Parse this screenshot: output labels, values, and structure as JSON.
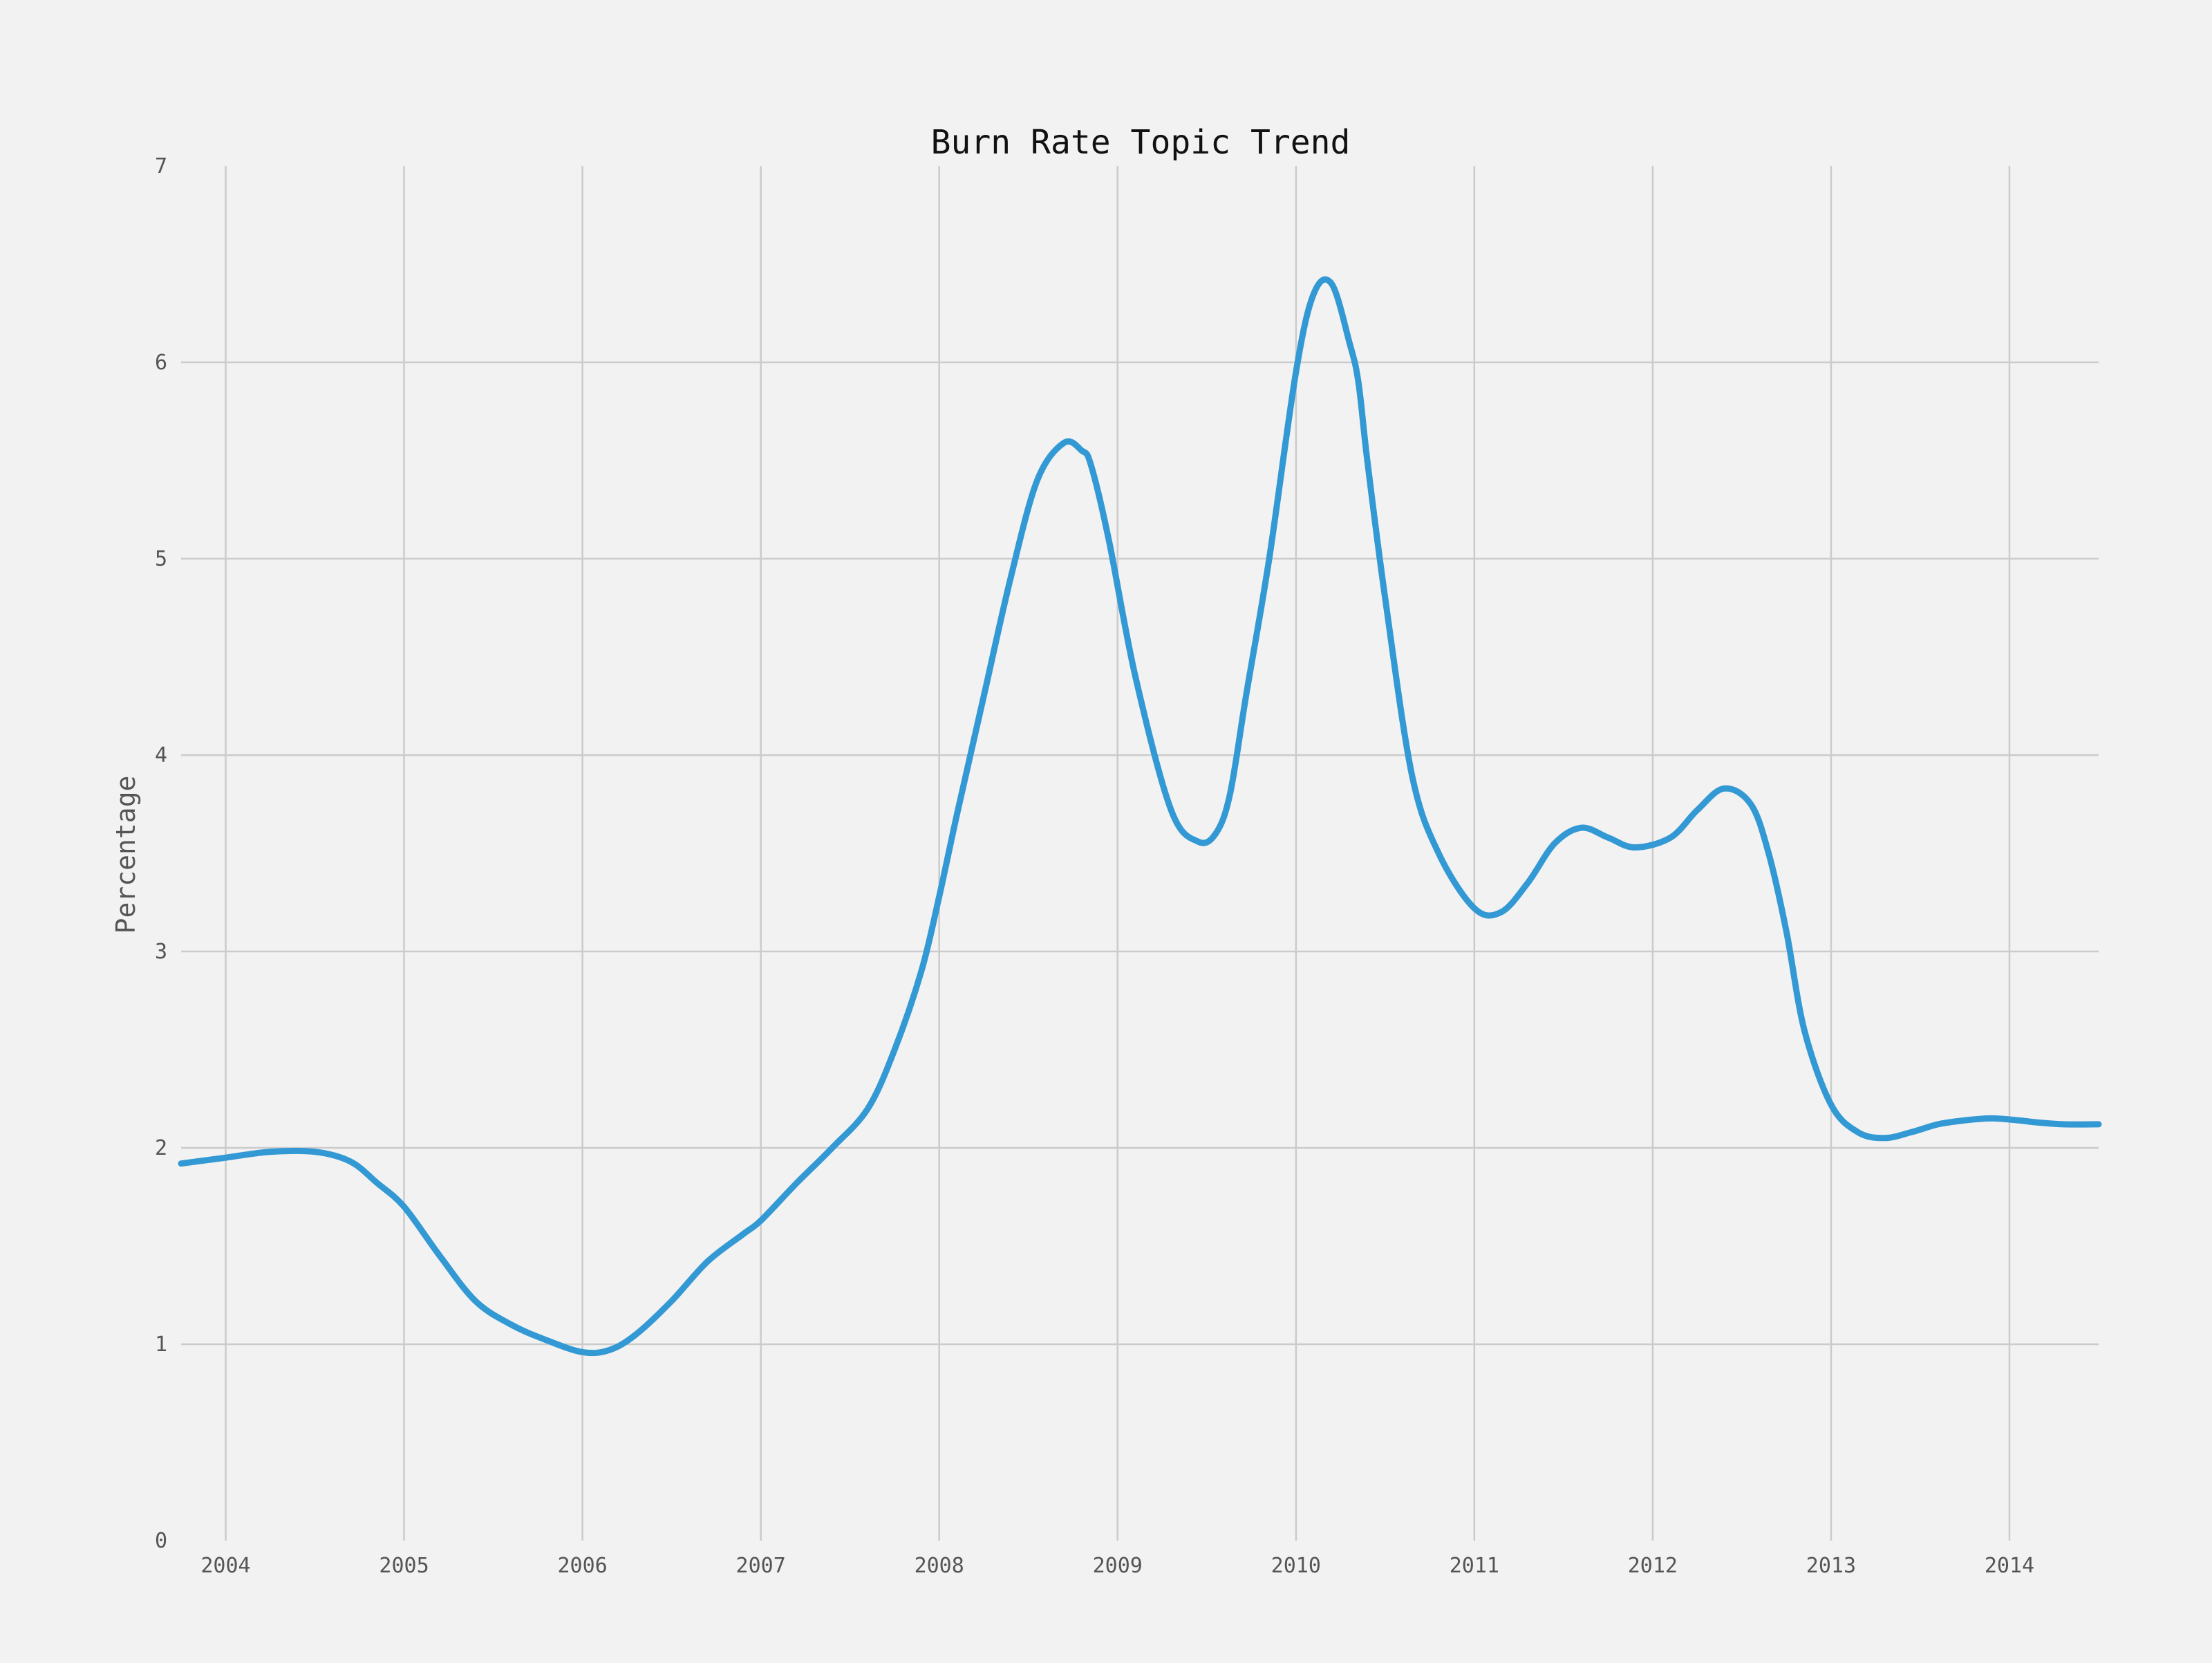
{
  "chart_data": {
    "type": "line",
    "title": "Burn Rate Topic Trend",
    "xlabel": "",
    "ylabel": "Percentage",
    "xlim": [
      2003.75,
      2014.5
    ],
    "ylim": [
      0,
      7
    ],
    "xticks": [
      2004,
      2005,
      2006,
      2007,
      2008,
      2009,
      2010,
      2011,
      2012,
      2013,
      2014
    ],
    "yticks": [
      0,
      1,
      2,
      3,
      4,
      5,
      6,
      7
    ],
    "grid": true,
    "colors": {
      "line": "#3399d4",
      "grid": "#cbcbcb",
      "background": "#f2f2f2"
    },
    "series": [
      {
        "x": [
          2003.75,
          2004.0,
          2004.25,
          2004.5,
          2004.7,
          2004.85,
          2005.0,
          2005.2,
          2005.4,
          2005.6,
          2005.8,
          2006.0,
          2006.15,
          2006.3,
          2006.5,
          2006.7,
          2006.9,
          2007.0,
          2007.2,
          2007.4,
          2007.6,
          2007.75,
          2007.9,
          2008.0,
          2008.1,
          2008.25,
          2008.4,
          2008.55,
          2008.7,
          2008.8,
          2008.85,
          2008.95,
          2009.1,
          2009.3,
          2009.45,
          2009.55,
          2009.63,
          2009.72,
          2009.85,
          2010.0,
          2010.1,
          2010.2,
          2010.3,
          2010.35,
          2010.4,
          2010.5,
          2010.65,
          2010.8,
          2011.0,
          2011.15,
          2011.3,
          2011.45,
          2011.6,
          2011.75,
          2011.9,
          2012.1,
          2012.25,
          2012.4,
          2012.55,
          2012.65,
          2012.75,
          2012.85,
          2013.0,
          2013.15,
          2013.3,
          2013.45,
          2013.6,
          2013.75,
          2013.9,
          2014.05,
          2014.15,
          2014.3,
          2014.5
        ],
        "values": [
          1.92,
          1.95,
          1.98,
          1.98,
          1.93,
          1.82,
          1.7,
          1.45,
          1.22,
          1.1,
          1.02,
          0.96,
          0.97,
          1.05,
          1.22,
          1.42,
          1.56,
          1.63,
          1.82,
          2.0,
          2.2,
          2.5,
          2.9,
          3.28,
          3.7,
          4.3,
          4.9,
          5.4,
          5.59,
          5.55,
          5.48,
          5.1,
          4.4,
          3.72,
          3.56,
          3.6,
          3.8,
          4.3,
          5.0,
          5.95,
          6.35,
          6.4,
          6.1,
          5.9,
          5.5,
          4.8,
          3.9,
          3.5,
          3.22,
          3.2,
          3.35,
          3.55,
          3.63,
          3.58,
          3.53,
          3.58,
          3.72,
          3.83,
          3.75,
          3.5,
          3.1,
          2.6,
          2.22,
          2.08,
          2.05,
          2.08,
          2.12,
          2.14,
          2.15,
          2.14,
          2.13,
          2.12,
          2.12
        ]
      }
    ]
  }
}
